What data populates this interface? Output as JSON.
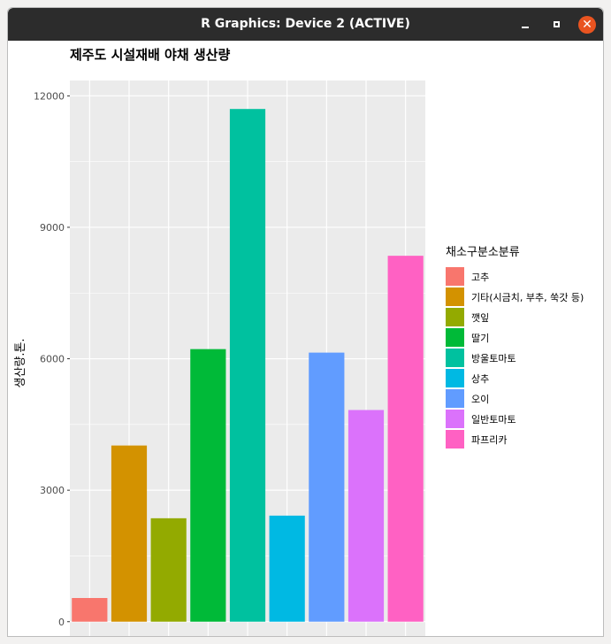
{
  "window": {
    "title": "R Graphics: Device 2 (ACTIVE)",
    "minimize_icon": "minimize-icon",
    "maximize_icon": "maximize-icon",
    "close_icon": "close-icon",
    "close_glyph": "✕"
  },
  "chart_data": {
    "type": "bar",
    "title": "제주도 시설재배 야채 생산량",
    "xlabel": "",
    "ylabel": "생산량.톤.",
    "categories": [
      "고추",
      "기타(시금치, 부추, 쑥갓 등)",
      "깻잎",
      "딸기",
      "방울토마토",
      "상추",
      "오이",
      "일반토마토",
      "파프리카"
    ],
    "values": [
      540,
      4020,
      2360,
      6220,
      11700,
      2420,
      6140,
      4830,
      8350
    ],
    "colors": [
      "#F8766D",
      "#D39200",
      "#93AA00",
      "#00BA38",
      "#00C19F",
      "#00B9E3",
      "#619CFF",
      "#DB72FB",
      "#FF61C3"
    ],
    "ylim": [
      -550,
      12350
    ],
    "yticks": [
      0,
      3000,
      6000,
      9000,
      12000
    ],
    "ytick_labels": [
      "0",
      "3000",
      "6000",
      "9000",
      "12000"
    ],
    "grid": true,
    "legend": {
      "title": "채소구분소분류",
      "entries": [
        "고추",
        "기타(시금치, 부추, 쑥갓 등)",
        "깻잎",
        "딸기",
        "방울토마토",
        "상추",
        "오이",
        "일반토마토",
        "파프리카"
      ],
      "position": "right"
    }
  }
}
